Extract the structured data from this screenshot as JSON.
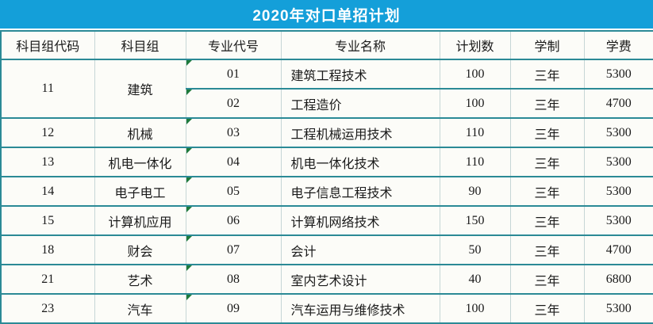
{
  "title": "2020年对口单招计划",
  "colors": {
    "title_bar_blue": "#149fd9",
    "title_text": "#ffffff",
    "border_teal": "#2b8a96",
    "column_divider": "#c6d6d6",
    "cell_background": "#fcfcf8",
    "flag_green": "#1e7a3c",
    "text": "#1a1a1a"
  },
  "table": {
    "headers": [
      "科目组代码",
      "科目组",
      "专业代号",
      "专业名称",
      "计划数",
      "学制",
      "学费"
    ],
    "groups": [
      {
        "code": "11",
        "group": "建筑",
        "majors": [
          {
            "no": "01",
            "name": "建筑工程技术",
            "plan": "100",
            "duration": "三年",
            "fee": "5300"
          },
          {
            "no": "02",
            "name": "工程造价",
            "plan": "100",
            "duration": "三年",
            "fee": "4700"
          }
        ]
      },
      {
        "code": "12",
        "group": "机械",
        "majors": [
          {
            "no": "03",
            "name": "工程机械运用技术",
            "plan": "110",
            "duration": "三年",
            "fee": "5300"
          }
        ]
      },
      {
        "code": "13",
        "group": "机电一体化",
        "majors": [
          {
            "no": "04",
            "name": "机电一体化技术",
            "plan": "110",
            "duration": "三年",
            "fee": "5300"
          }
        ]
      },
      {
        "code": "14",
        "group": "电子电工",
        "majors": [
          {
            "no": "05",
            "name": "电子信息工程技术",
            "plan": "90",
            "duration": "三年",
            "fee": "5300"
          }
        ]
      },
      {
        "code": "15",
        "group": "计算机应用",
        "majors": [
          {
            "no": "06",
            "name": "计算机网络技术",
            "plan": "150",
            "duration": "三年",
            "fee": "5300"
          }
        ]
      },
      {
        "code": "18",
        "group": "财会",
        "majors": [
          {
            "no": "07",
            "name": "会计",
            "plan": "50",
            "duration": "三年",
            "fee": "4700"
          }
        ]
      },
      {
        "code": "21",
        "group": "艺术",
        "majors": [
          {
            "no": "08",
            "name": "室内艺术设计",
            "plan": "40",
            "duration": "三年",
            "fee": "6800"
          }
        ]
      },
      {
        "code": "23",
        "group": "汽车",
        "majors": [
          {
            "no": "09",
            "name": "汽车运用与维修技术",
            "plan": "100",
            "duration": "三年",
            "fee": "5300"
          }
        ]
      }
    ]
  }
}
